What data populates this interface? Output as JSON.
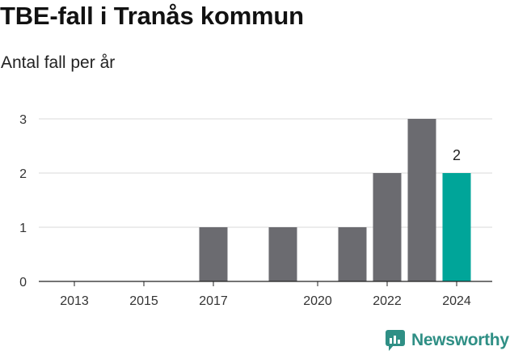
{
  "header": {
    "title": "TBE-fall i Tranås kommun",
    "subtitle": "Antal fall per år"
  },
  "brand": {
    "name": "Newsworthy",
    "icon": "newsworthy-logo-icon",
    "color": "#2f8f85"
  },
  "chart_data": {
    "type": "bar",
    "title": "TBE-fall i Tranås kommun",
    "subtitle": "Antal fall per år",
    "xlabel": "",
    "ylabel": "",
    "categories": [
      2013,
      2014,
      2015,
      2016,
      2017,
      2018,
      2019,
      2020,
      2021,
      2022,
      2023,
      2024
    ],
    "values": [
      0,
      0,
      0,
      0,
      1,
      0,
      1,
      0,
      1,
      2,
      3,
      2
    ],
    "x_tick_labels": [
      "2013",
      "2015",
      "2017",
      "2020",
      "2022",
      "2024"
    ],
    "y_ticks": [
      0,
      1,
      2,
      3
    ],
    "ylim": [
      0,
      3
    ],
    "grid": true,
    "bar_color": "#6b6b70",
    "highlight_color": "#00a599",
    "highlight_category": 2024,
    "data_labels": [
      {
        "category": 2024,
        "text": "2"
      }
    ]
  }
}
